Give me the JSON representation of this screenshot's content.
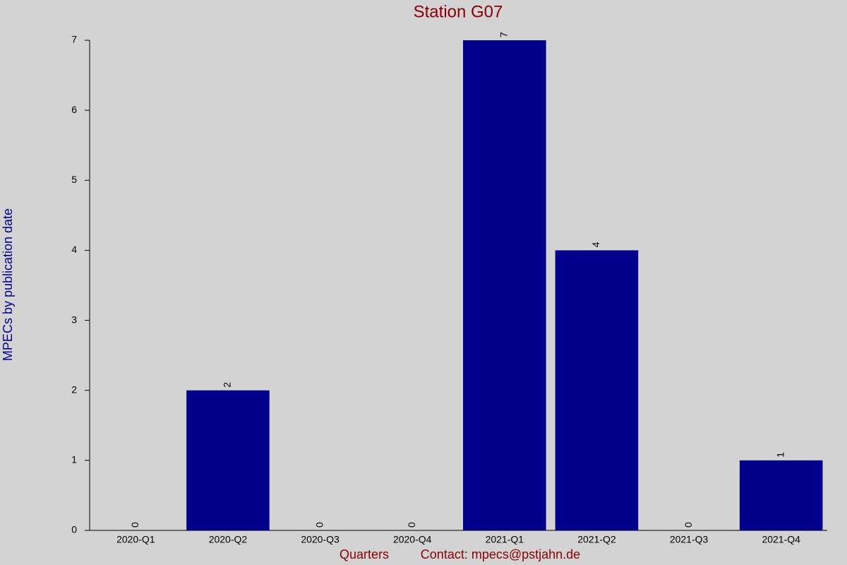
{
  "chart_data": {
    "type": "bar",
    "title": "Station G07",
    "x_label": "Quarters",
    "annotation": "Contact: mpecs@pstjahn.de",
    "y_label": "MPECs by publication date",
    "categories": [
      "2020-Q1",
      "2020-Q2",
      "2020-Q3",
      "2020-Q4",
      "2021-Q1",
      "2021-Q2",
      "2021-Q3",
      "2021-Q4"
    ],
    "values": [
      0,
      2,
      0,
      0,
      7,
      4,
      0,
      1
    ],
    "color": "#00008b",
    "ylim": [
      0,
      7
    ],
    "yticks": [
      0,
      1,
      2,
      3,
      4,
      5,
      6,
      7
    ],
    "grid": false
  }
}
